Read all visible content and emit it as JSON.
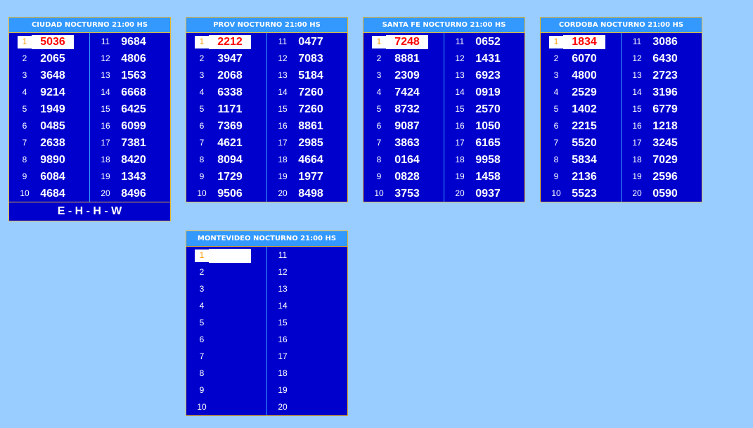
{
  "panels": [
    {
      "title": "CIUDAD NOCTURNO 21:00 HS",
      "numbers": [
        "5036",
        "2065",
        "3648",
        "9214",
        "1949",
        "0485",
        "2638",
        "9890",
        "6084",
        "4684",
        "9684",
        "4806",
        "1563",
        "6668",
        "6425",
        "6099",
        "7381",
        "8420",
        "1343",
        "8496"
      ],
      "footer": "E - H - H - W"
    },
    {
      "title": "PROV NOCTURNO 21:00 HS",
      "numbers": [
        "2212",
        "3947",
        "2068",
        "6338",
        "1171",
        "7369",
        "4621",
        "8094",
        "1729",
        "9506",
        "0477",
        "7083",
        "5184",
        "7260",
        "7260",
        "8861",
        "2985",
        "4664",
        "1977",
        "8498"
      ]
    },
    {
      "title": "SANTA FE NOCTURNO 21:00 HS",
      "numbers": [
        "7248",
        "8881",
        "2309",
        "7424",
        "8732",
        "9087",
        "3863",
        "0164",
        "0828",
        "3753",
        "0652",
        "1431",
        "6923",
        "0919",
        "2570",
        "1050",
        "6165",
        "9958",
        "1458",
        "0937"
      ]
    },
    {
      "title": "CORDOBA NOCTURNO 21:00 HS",
      "numbers": [
        "1834",
        "6070",
        "4800",
        "2529",
        "1402",
        "2215",
        "5520",
        "5834",
        "2136",
        "5523",
        "3086",
        "6430",
        "2723",
        "3196",
        "6779",
        "1218",
        "3245",
        "7029",
        "2596",
        "0590"
      ]
    },
    {
      "title": "MONTEVIDEO NOCTURNO 21:00 HS",
      "numbers": [
        "",
        "",
        "",
        "",
        "",
        "",
        "",
        "",
        "",
        "",
        "",
        "",
        "",
        "",
        "",
        "",
        "",
        "",
        "",
        ""
      ]
    }
  ],
  "positions": [
    "1",
    "2",
    "3",
    "4",
    "5",
    "6",
    "7",
    "8",
    "9",
    "10",
    "11",
    "12",
    "13",
    "14",
    "15",
    "16",
    "17",
    "18",
    "19",
    "20"
  ],
  "colors": {
    "background": "#99ccff",
    "panel": "#0000cc",
    "header": "#3399ff",
    "border": "#e8b830",
    "first_prize": "#ff0000"
  }
}
